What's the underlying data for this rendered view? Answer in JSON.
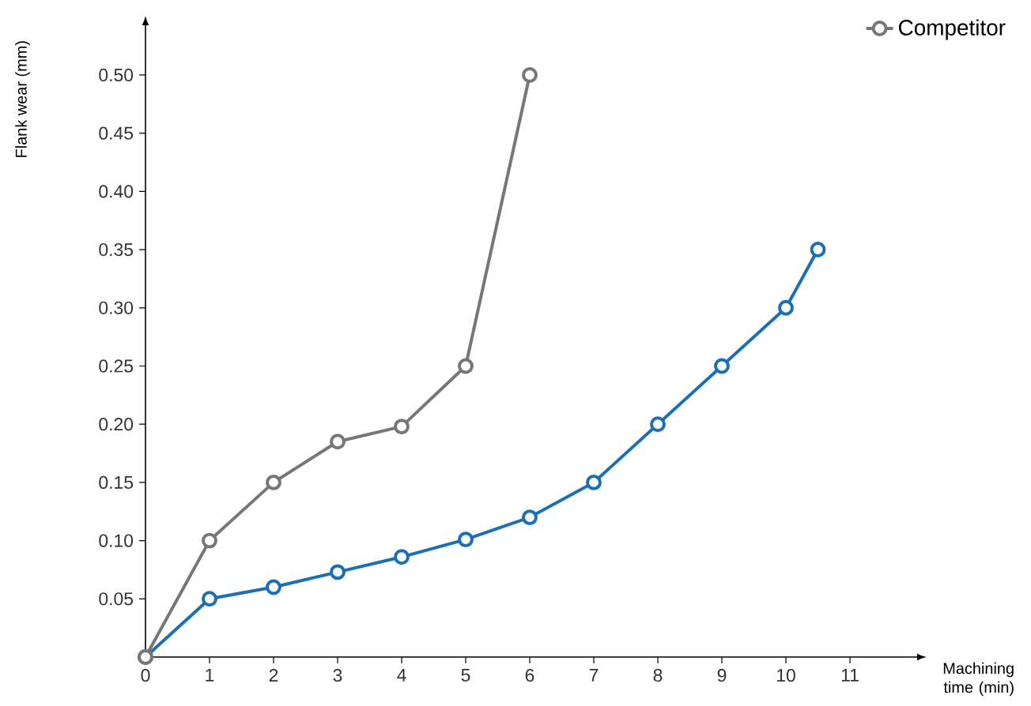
{
  "chart_data": {
    "type": "line",
    "xlabel": "Machining time (min)",
    "ylabel": "Flank wear (mm)",
    "series": [
      {
        "color": "#1a6fb5",
        "x": [
          0,
          1,
          2,
          3,
          4,
          5,
          6,
          7,
          8,
          9,
          10,
          10.5
        ],
        "values": [
          0,
          0.05,
          0.06,
          0.073,
          0.086,
          0.101,
          0.12,
          0.15,
          0.2,
          0.25,
          0.3,
          0.35
        ]
      },
      {
        "name": "Competitor",
        "color": "#777777",
        "x": [
          0,
          1,
          2,
          3,
          4,
          5,
          6
        ],
        "values": [
          0,
          0.1,
          0.15,
          0.185,
          0.198,
          0.25,
          0.5
        ]
      }
    ],
    "xlim": [
      0,
      12
    ],
    "ylim": [
      0,
      0.54
    ],
    "xticks": [
      0,
      1,
      2,
      3,
      4,
      5,
      6,
      7,
      8,
      9,
      10,
      11
    ],
    "yticks": [
      {
        "value": 0.05,
        "label": "0.05"
      },
      {
        "value": 0.1,
        "label": "0.10"
      },
      {
        "value": 0.15,
        "label": "0.15"
      },
      {
        "value": 0.2,
        "label": "0.20"
      },
      {
        "value": 0.25,
        "label": "0.25"
      },
      {
        "value": 0.3,
        "label": "0.30"
      },
      {
        "value": 0.35,
        "label": "0.35"
      },
      {
        "value": 0.4,
        "label": "0.40"
      },
      {
        "value": 0.45,
        "label": "0.45"
      },
      {
        "value": 0.5,
        "label": "0.50"
      }
    ],
    "marker": "circle",
    "line_style": "solid",
    "grid": false,
    "legend": "top right"
  }
}
